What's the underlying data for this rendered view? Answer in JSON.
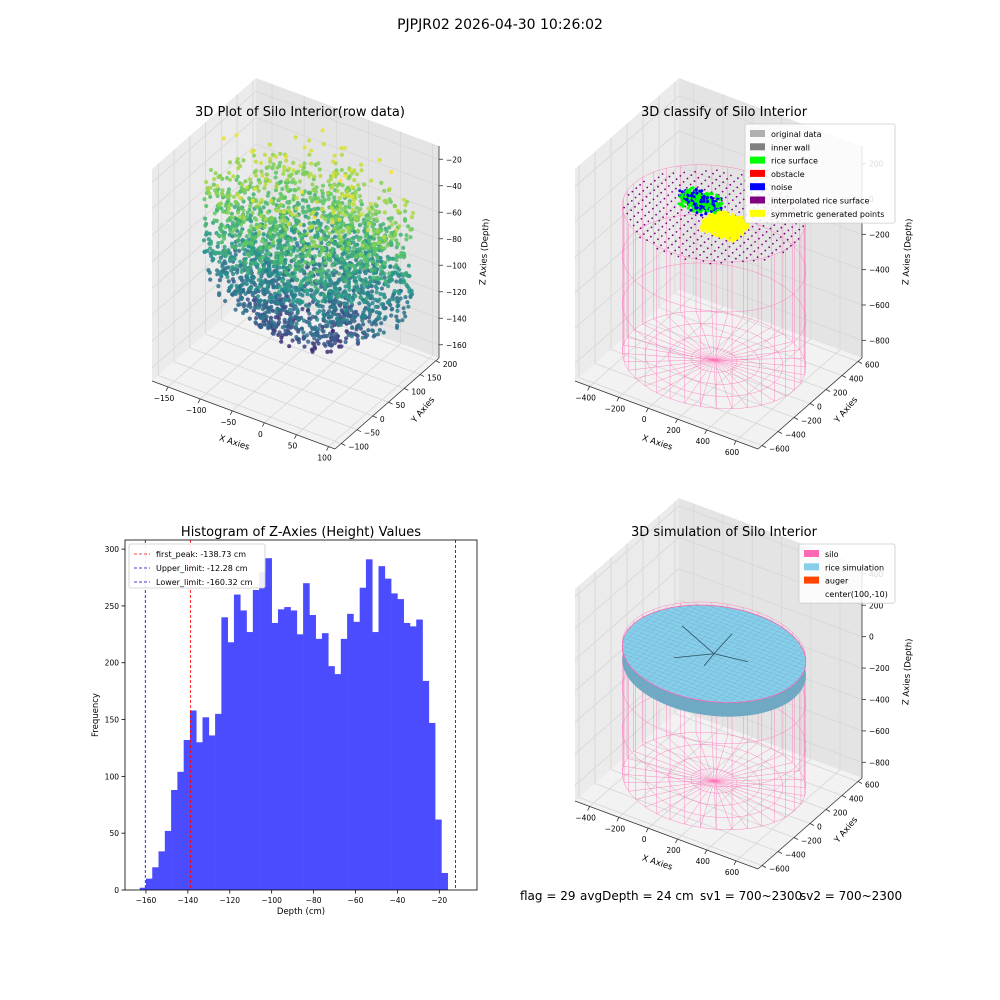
{
  "suptitle": "PJPJR02 2026-04-30 10:26:02",
  "chart_data": [
    {
      "type": "scatter",
      "title": "3D Plot of Silo Interior(row data)",
      "xlabel": "X Axies",
      "ylabel": "Y Axies",
      "zlabel": "Z Axies (Depth)",
      "xlim": [
        -175,
        110
      ],
      "ylim": [
        -120,
        210
      ],
      "zlim": [
        -170,
        -10
      ],
      "xticks": [
        -150,
        -100,
        -50,
        0,
        50,
        100
      ],
      "yticks": [
        -100,
        -50,
        0,
        50,
        100,
        150,
        200
      ],
      "zticks": [
        -20,
        -40,
        -60,
        -80,
        -100,
        -120,
        -140,
        -160
      ],
      "colormap": "viridis",
      "grid": true
    },
    {
      "type": "scatter",
      "title": "3D classify of Silo Interior",
      "xlabel": "X Axies",
      "ylabel": "Y Axies",
      "zlabel": "Z Axies (Depth)",
      "xlim": [
        -500,
        750
      ],
      "ylim": [
        -650,
        650
      ],
      "zlim": [
        -900,
        300
      ],
      "xticks": [
        -400,
        -200,
        0,
        200,
        400,
        600
      ],
      "yticks": [
        -600,
        -400,
        -200,
        0,
        200,
        400,
        600
      ],
      "zticks": [
        200,
        0,
        -200,
        -400,
        -600,
        -800
      ],
      "legend_position": "top-right",
      "legend": [
        {
          "label": "original data",
          "color": "#b0b0b0"
        },
        {
          "label": "inner wall",
          "color": "#808080"
        },
        {
          "label": "rice surface",
          "color": "#00ff00"
        },
        {
          "label": "obstacle",
          "color": "#ff0000"
        },
        {
          "label": "noise",
          "color": "#0000ff"
        },
        {
          "label": "interpolated rice surface",
          "color": "#800080"
        },
        {
          "label": "symmetric generated points",
          "color": "#ffff00"
        }
      ],
      "silo_wireframe_color": "#ff69b4",
      "grid": true
    },
    {
      "type": "bar",
      "title": "Histogram of Z-Axies (Height) Values",
      "xlabel": "Depth (cm)",
      "ylabel": "Frequency",
      "xlim": [
        -170,
        -2
      ],
      "ylim": [
        0,
        308
      ],
      "xticks": [
        -160,
        -140,
        -120,
        -100,
        -80,
        -60,
        -40,
        -20
      ],
      "yticks": [
        0,
        50,
        100,
        150,
        200,
        250,
        300
      ],
      "bin_start": -163,
      "bin_width": 3,
      "bar_color": "#4c4cff",
      "values": [
        2,
        10,
        20,
        34,
        52,
        88,
        104,
        132,
        158,
        130,
        152,
        136,
        155,
        240,
        218,
        260,
        246,
        227,
        264,
        280,
        292,
        235,
        247,
        249,
        246,
        225,
        270,
        242,
        221,
        226,
        197,
        190,
        221,
        243,
        236,
        266,
        291,
        227,
        285,
        274,
        261,
        256,
        235,
        232,
        238,
        184,
        147,
        62,
        15
      ],
      "vlines": [
        {
          "label": "first_peak: -138.73 cm",
          "x": -138.73,
          "color": "#ff0000"
        },
        {
          "label": "Upper_limit: -12.28 cm",
          "x": -12.28,
          "color": "#0000cc"
        },
        {
          "label": "Lower_limit: -160.32 cm",
          "x": -160.32,
          "color": "#0000cc"
        }
      ],
      "legend_position": "top-left",
      "grid": false
    },
    {
      "type": "scatter",
      "title": "3D simulation of Silo Interior",
      "xlabel": "X Axies",
      "ylabel": "Y Axies",
      "zlabel": "Z Axies (Depth)",
      "xlim": [
        -500,
        750
      ],
      "ylim": [
        -650,
        650
      ],
      "zlim": [
        -900,
        450
      ],
      "xticks": [
        -400,
        -200,
        0,
        200,
        400,
        600
      ],
      "yticks": [
        -600,
        -400,
        -200,
        0,
        200,
        400,
        600
      ],
      "zticks": [
        400,
        200,
        0,
        -200,
        -400,
        -600,
        -800
      ],
      "legend_position": "top-right",
      "legend": [
        {
          "label": "silo",
          "color": "#ff69b4"
        },
        {
          "label": "rice simulation",
          "color": "#87ceeb"
        },
        {
          "label": "auger",
          "color": "#ff4500"
        },
        {
          "label": "center(100,-10)",
          "color": ""
        }
      ],
      "grid": true
    }
  ],
  "footer": {
    "flag": "flag = 29",
    "avg_depth": "avgDepth = 24 cm",
    "sv1": "sv1 = 700~2300",
    "sv2": "sv2 = 700~2300"
  }
}
